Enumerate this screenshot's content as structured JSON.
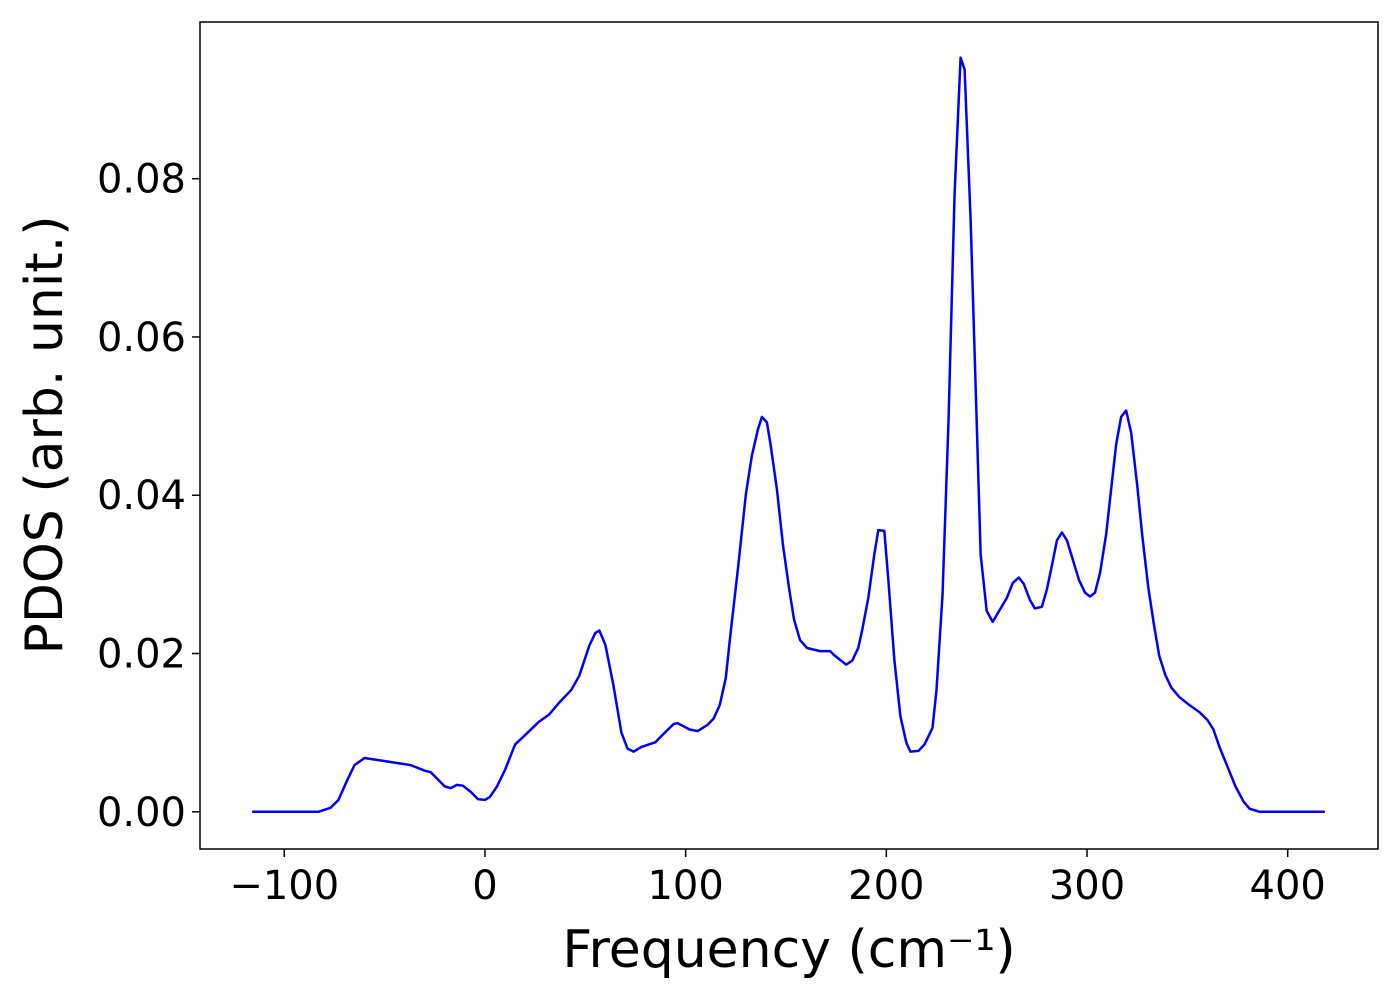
{
  "chart_data": {
    "type": "line",
    "xlabel": "Frequency (cm⁻¹)",
    "ylabel": "PDOS (arb. unit.)",
    "color": "#0000ff",
    "x": [
      -116,
      -83,
      -77,
      -73,
      -69,
      -65,
      -60,
      -37,
      -30,
      -27,
      -20,
      -17,
      -14,
      -11,
      -7,
      -3.5,
      0,
      2.5,
      6,
      10,
      15,
      20,
      27,
      32,
      37,
      43,
      47,
      52,
      55,
      57,
      60,
      64,
      68,
      71,
      74,
      78,
      85,
      88,
      94,
      96,
      102,
      106,
      111,
      114,
      117,
      120,
      122,
      126,
      130,
      133,
      136,
      138,
      140.5,
      142.5,
      145.5,
      148.5,
      151.5,
      154,
      157,
      160.5,
      167,
      172,
      174,
      177,
      180,
      183,
      186,
      188,
      191,
      194,
      196,
      199,
      201,
      204,
      207,
      210,
      212,
      216,
      219,
      223,
      225,
      228,
      231,
      234,
      237,
      239,
      242,
      245,
      247,
      250,
      253,
      256,
      260,
      263,
      266,
      268.5,
      271.5,
      274,
      277.5,
      280,
      282.5,
      285,
      287.5,
      290,
      293,
      296,
      299,
      301.5,
      304,
      306.5,
      309.5,
      312,
      314.5,
      317,
      319.5,
      322,
      325,
      327.5,
      330.5,
      333.5,
      336,
      339,
      342,
      346,
      351,
      356,
      360,
      363,
      366,
      370,
      374,
      378,
      381,
      386,
      418.5
    ],
    "values": [
      0,
      0,
      0.0005,
      0.0015,
      0.0038,
      0.0059,
      0.0068,
      0.0059,
      0.0052,
      0.005,
      0.0032,
      0.003,
      0.0034,
      0.0033,
      0.0025,
      0.0016,
      0.0015,
      0.0019,
      0.0032,
      0.0053,
      0.0085,
      0.0097,
      0.0114,
      0.0123,
      0.0138,
      0.0154,
      0.0172,
      0.021,
      0.0226,
      0.0229,
      0.0211,
      0.016,
      0.01,
      0.008,
      0.0076,
      0.0082,
      0.0088,
      0.0096,
      0.0111,
      0.0112,
      0.0104,
      0.0102,
      0.011,
      0.0118,
      0.0135,
      0.0169,
      0.0217,
      0.0306,
      0.0401,
      0.045,
      0.0483,
      0.0499,
      0.0492,
      0.0461,
      0.0407,
      0.0337,
      0.0283,
      0.0243,
      0.0217,
      0.0207,
      0.0203,
      0.0203,
      0.0198,
      0.0192,
      0.0186,
      0.0191,
      0.0207,
      0.023,
      0.027,
      0.0325,
      0.0356,
      0.0355,
      0.0293,
      0.0192,
      0.0121,
      0.0087,
      0.0076,
      0.0077,
      0.0085,
      0.0106,
      0.0154,
      0.0274,
      0.0495,
      0.078,
      0.0953,
      0.0938,
      0.0748,
      0.0495,
      0.0325,
      0.0254,
      0.024,
      0.0253,
      0.027,
      0.0289,
      0.0296,
      0.0288,
      0.0268,
      0.0257,
      0.0259,
      0.0281,
      0.0311,
      0.0343,
      0.0353,
      0.0343,
      0.0318,
      0.0293,
      0.0277,
      0.0272,
      0.0277,
      0.0302,
      0.035,
      0.0407,
      0.0464,
      0.0499,
      0.0507,
      0.0479,
      0.0413,
      0.035,
      0.0284,
      0.0234,
      0.0197,
      0.0173,
      0.0157,
      0.0145,
      0.0135,
      0.0126,
      0.0116,
      0.0104,
      0.0082,
      0.0057,
      0.0032,
      0.0013,
      0.0004,
      0,
      0
    ],
    "xlim": [
      -142,
      445
    ],
    "ylim": [
      -0.0047,
      0.0998
    ],
    "xticks": [
      {
        "value": -100,
        "label": "−100"
      },
      0,
      100,
      200,
      300,
      400
    ],
    "yticks": [
      {
        "value": 0,
        "label": "0.00"
      },
      {
        "value": 0.02,
        "label": "0.02"
      },
      {
        "value": 0.04,
        "label": "0.04"
      },
      {
        "value": 0.06,
        "label": "0.06"
      },
      {
        "value": 0.08,
        "label": "0.08"
      }
    ],
    "grid": false
  }
}
